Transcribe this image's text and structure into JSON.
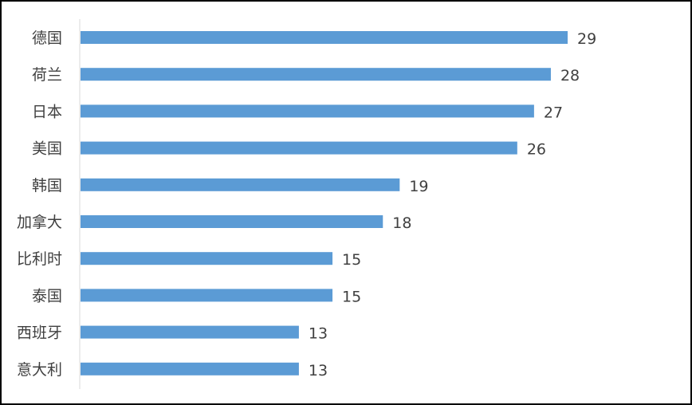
{
  "chart_data": {
    "type": "bar",
    "orientation": "horizontal",
    "categories": [
      "德国",
      "荷兰",
      "日本",
      "美国",
      "韩国",
      "加拿大",
      "比利时",
      "泰国",
      "西班牙",
      "意大利"
    ],
    "values": [
      29,
      28,
      27,
      26,
      19,
      18,
      15,
      15,
      13,
      13
    ],
    "title": "",
    "xlabel": "",
    "ylabel": "",
    "xlim": [
      0,
      30
    ],
    "grid": false,
    "legend": "none",
    "data_labels": true,
    "bar_color": "#5B9BD5"
  }
}
